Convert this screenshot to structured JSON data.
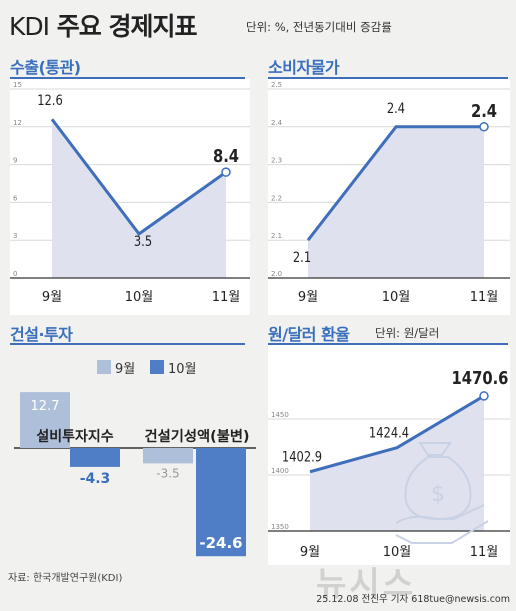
{
  "header": {
    "title_brand": "KDI",
    "title_main": "주요 경제지표",
    "unit": "단위: %, 전년동기대비 증감률"
  },
  "colors": {
    "accent": "#3f6fba",
    "area": "#dfe2ee",
    "bar_light": "#aebfd9",
    "bar_dark": "#4f7ec7",
    "bg": "#f1f1ef"
  },
  "panels": {
    "exports": {
      "title": "수출(통관)"
    },
    "cpi": {
      "title": "소비자물가"
    },
    "construction": {
      "title": "건설·투자"
    },
    "fx": {
      "title": "원/달러 환율",
      "unit": "단위: 원/달러"
    }
  },
  "legend": {
    "sep": "9월",
    "oct": "10월"
  },
  "footer": {
    "source": "자료: 한국개발연구원(KDI)",
    "credit": "25.12.08 전진우 기자 618tue@newsis.com",
    "watermark": "뉴시스"
  },
  "chart_data": [
    {
      "id": "exports",
      "type": "area",
      "title": "수출(통관)",
      "categories": [
        "9월",
        "10월",
        "11월"
      ],
      "values": [
        12.6,
        3.5,
        8.4
      ],
      "value_labels": [
        "12.6",
        "3.5",
        "8.4"
      ],
      "yticks": [
        "15",
        "12",
        "9",
        "6",
        "3",
        "0"
      ],
      "ylim": [
        0,
        15
      ],
      "grid": true
    },
    {
      "id": "cpi",
      "type": "area",
      "title": "소비자물가",
      "categories": [
        "9월",
        "10월",
        "11월"
      ],
      "values": [
        2.1,
        2.4,
        2.4
      ],
      "value_labels": [
        "2.1",
        "2.4",
        "2.4"
      ],
      "yticks": [
        "2.5",
        "2.4",
        "2.3",
        "2.2",
        "2.1",
        "2.0"
      ],
      "ylim": [
        2.0,
        2.5
      ],
      "grid": true
    },
    {
      "id": "construction",
      "type": "bar",
      "title": "건설·투자",
      "categories": [
        "설비투자지수",
        "건설기성액(불변)"
      ],
      "series": [
        {
          "name": "9월",
          "values": [
            12.7,
            -3.5
          ],
          "labels": [
            "12.7",
            "-3.5"
          ]
        },
        {
          "name": "10월",
          "values": [
            -4.3,
            -24.6
          ],
          "labels": [
            "-4.3",
            "-24.6"
          ]
        }
      ],
      "legend": "top-right"
    },
    {
      "id": "fx",
      "type": "area",
      "title": "원/달러 환율",
      "unit": "단위: 원/달러",
      "categories": [
        "9월",
        "10월",
        "11월"
      ],
      "values": [
        1402.9,
        1424.4,
        1470.6
      ],
      "value_labels": [
        "1402.9",
        "1424.4",
        "1470.6"
      ],
      "yticks": [
        "1450",
        "1400",
        "1350"
      ],
      "ylim": [
        1350,
        1500
      ],
      "grid": true
    }
  ]
}
